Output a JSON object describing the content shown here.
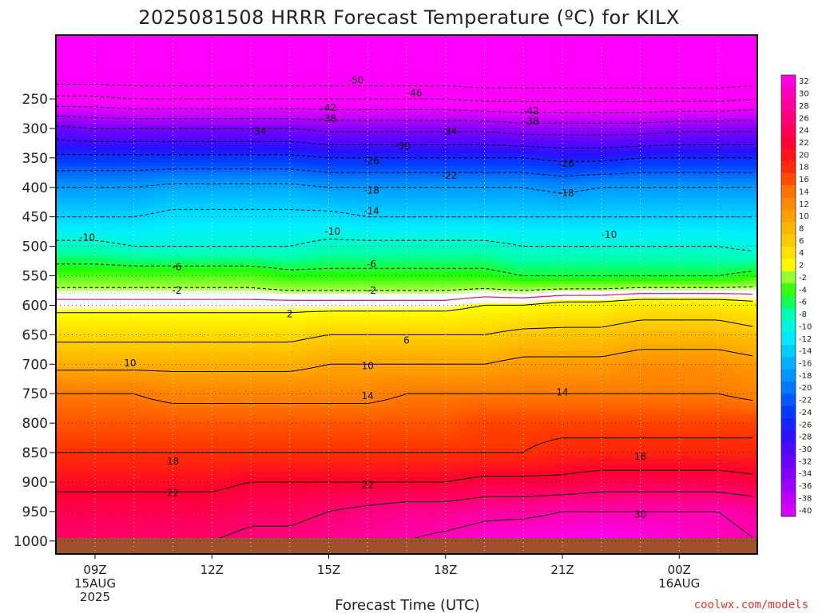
{
  "chart_data": {
    "type": "heatmap",
    "title": "2025081508 HRRR Forecast Temperature (ºC) for KILX",
    "xlabel": "Forecast Time (UTC)",
    "ylabel": "",
    "x_ticks": [
      {
        "label": "09Z",
        "sub": [
          "15AUG",
          "2025"
        ]
      },
      {
        "label": "12Z",
        "sub": []
      },
      {
        "label": "15Z",
        "sub": []
      },
      {
        "label": "18Z",
        "sub": []
      },
      {
        "label": "21Z",
        "sub": []
      },
      {
        "label": "00Z",
        "sub": [
          "16AUG"
        ]
      }
    ],
    "y_ticks": [
      "250",
      "300",
      "350",
      "400",
      "450",
      "500",
      "550",
      "600",
      "650",
      "700",
      "750",
      "800",
      "850",
      "900",
      "950",
      "1000"
    ],
    "x_hours": [
      8,
      9,
      10,
      11,
      12,
      13,
      14,
      15,
      16,
      17,
      18,
      19,
      20,
      21,
      22,
      23,
      24,
      25,
      26
    ],
    "levels_mb": [
      200,
      250,
      300,
      350,
      400,
      450,
      500,
      550,
      600,
      650,
      700,
      750,
      800,
      850,
      900,
      950,
      1000
    ],
    "series": [
      {
        "level": 200,
        "values": [
          -55,
          -55,
          -55,
          -55,
          -55,
          -55,
          -55,
          -55,
          -55,
          -55,
          -55,
          -55,
          -55,
          -55,
          -55,
          -55,
          -55,
          -55,
          -55
        ]
      },
      {
        "level": 250,
        "values": [
          -45,
          -45,
          -46,
          -46,
          -46,
          -46,
          -46,
          -46,
          -46,
          -46,
          -46,
          -47,
          -47,
          -47,
          -47,
          -47,
          -47,
          -47,
          -46
        ]
      },
      {
        "level": 300,
        "values": [
          -33,
          -34,
          -34,
          -34,
          -34,
          -34,
          -34,
          -35,
          -35,
          -35,
          -35,
          -35,
          -36,
          -36,
          -36,
          -36,
          -35,
          -35,
          -35
        ]
      },
      {
        "level": 350,
        "values": [
          -25,
          -25,
          -25,
          -25,
          -25,
          -25,
          -25,
          -26,
          -26,
          -26,
          -26,
          -26,
          -26,
          -27,
          -27,
          -26,
          -26,
          -26,
          -26
        ]
      },
      {
        "level": 400,
        "values": [
          -18,
          -18,
          -18,
          -17,
          -17,
          -17,
          -17,
          -18,
          -18,
          -18,
          -18,
          -18,
          -18,
          -19,
          -18,
          -18,
          -18,
          -18,
          -18
        ]
      },
      {
        "level": 450,
        "values": [
          -14,
          -14,
          -14,
          -13,
          -13,
          -13,
          -13,
          -13,
          -14,
          -14,
          -14,
          -14,
          -14,
          -14,
          -14,
          -14,
          -14,
          -14,
          -14
        ]
      },
      {
        "level": 500,
        "values": [
          -9,
          -9,
          -10,
          -10,
          -10,
          -10,
          -10,
          -9,
          -9,
          -9,
          -9,
          -9,
          -10,
          -10,
          -10,
          -10,
          -10,
          -10,
          -11
        ]
      },
      {
        "level": 550,
        "values": [
          -4,
          -4,
          -4,
          -4,
          -4,
          -4,
          -5,
          -5,
          -5,
          -5,
          -5,
          -5,
          -6,
          -6,
          -6,
          -6,
          -6,
          -6,
          -5
        ]
      },
      {
        "level": 600,
        "values": [
          1,
          1,
          1,
          1,
          1,
          1,
          1,
          1,
          1,
          1,
          1,
          2,
          2,
          3,
          3,
          4,
          4,
          4,
          3
        ]
      },
      {
        "level": 650,
        "values": [
          5,
          5,
          5,
          5,
          5,
          5,
          5,
          6,
          6,
          6,
          6,
          6,
          7,
          7,
          7,
          8,
          8,
          8,
          7
        ]
      },
      {
        "level": 700,
        "values": [
          9,
          9,
          9,
          9,
          9,
          9,
          9,
          10,
          10,
          10,
          10,
          10,
          11,
          11,
          11,
          12,
          12,
          12,
          11
        ]
      },
      {
        "level": 750,
        "values": [
          14,
          14,
          14,
          13,
          13,
          13,
          13,
          13,
          13,
          14,
          14,
          14,
          14,
          14,
          14,
          14,
          14,
          14,
          13
        ]
      },
      {
        "level": 800,
        "values": [
          16,
          16,
          16,
          16,
          16,
          16,
          16,
          16,
          16,
          16,
          16,
          17,
          17,
          17,
          17,
          17,
          17,
          17,
          17
        ]
      },
      {
        "level": 850,
        "values": [
          18,
          18,
          18,
          18,
          18,
          18,
          18,
          18,
          18,
          18,
          18,
          18,
          18,
          19,
          19,
          19,
          19,
          19,
          19
        ]
      },
      {
        "level": 900,
        "values": [
          21,
          21,
          21,
          21,
          21,
          22,
          22,
          22,
          22,
          22,
          22,
          23,
          23,
          23,
          24,
          24,
          24,
          24,
          23
        ]
      },
      {
        "level": 950,
        "values": [
          24,
          24,
          24,
          24,
          24,
          25,
          25,
          26,
          27,
          28,
          28,
          29,
          29,
          30,
          30,
          30,
          30,
          30,
          29
        ]
      },
      {
        "level": 1000,
        "values": [
          26,
          26,
          26,
          26,
          26,
          27,
          27,
          28,
          29,
          30,
          31,
          32,
          33,
          33,
          34,
          33,
          32,
          31,
          30
        ]
      }
    ],
    "contour_labels": [
      {
        "text": "-50",
        "hour": 15.7,
        "p": 218
      },
      {
        "text": "-46",
        "hour": 17.2,
        "p": 240
      },
      {
        "text": "-42",
        "hour": 15.0,
        "p": 265
      },
      {
        "text": "-42",
        "hour": 20.2,
        "p": 270
      },
      {
        "text": "-38",
        "hour": 15.0,
        "p": 283
      },
      {
        "text": "-38",
        "hour": 20.2,
        "p": 288
      },
      {
        "text": "-34",
        "hour": 13.2,
        "p": 305
      },
      {
        "text": "-34",
        "hour": 18.1,
        "p": 305
      },
      {
        "text": "-30",
        "hour": 16.9,
        "p": 330
      },
      {
        "text": "-26",
        "hour": 16.1,
        "p": 355
      },
      {
        "text": "-26",
        "hour": 21.1,
        "p": 360
      },
      {
        "text": "-22",
        "hour": 18.1,
        "p": 380
      },
      {
        "text": "-18",
        "hour": 16.1,
        "p": 405
      },
      {
        "text": "-18",
        "hour": 21.1,
        "p": 410
      },
      {
        "text": "-14",
        "hour": 16.1,
        "p": 440
      },
      {
        "text": "-10",
        "hour": 8.8,
        "p": 485
      },
      {
        "text": "-10",
        "hour": 15.1,
        "p": 475
      },
      {
        "text": "-10",
        "hour": 22.2,
        "p": 480
      },
      {
        "text": "-6",
        "hour": 11.1,
        "p": 535
      },
      {
        "text": "-6",
        "hour": 16.1,
        "p": 530
      },
      {
        "text": "-2",
        "hour": 11.1,
        "p": 575
      },
      {
        "text": "-2",
        "hour": 16.1,
        "p": 575
      },
      {
        "text": "2",
        "hour": 14.0,
        "p": 615
      },
      {
        "text": "6",
        "hour": 17.0,
        "p": 660
      },
      {
        "text": "10",
        "hour": 9.9,
        "p": 698
      },
      {
        "text": "10",
        "hour": 16.0,
        "p": 703
      },
      {
        "text": "14",
        "hour": 16.0,
        "p": 754
      },
      {
        "text": "14",
        "hour": 21.0,
        "p": 748
      },
      {
        "text": "18",
        "hour": 11.0,
        "p": 865
      },
      {
        "text": "18",
        "hour": 23.0,
        "p": 857
      },
      {
        "text": "22",
        "hour": 11.0,
        "p": 918
      },
      {
        "text": "22",
        "hour": 16.0,
        "p": 905
      },
      {
        "text": "30",
        "hour": 23.0,
        "p": 955
      }
    ],
    "colorbar": {
      "levels": [
        32,
        30,
        28,
        26,
        24,
        22,
        20,
        18,
        16,
        14,
        12,
        10,
        8,
        6,
        4,
        2,
        -2,
        -4,
        -6,
        -8,
        -10,
        -12,
        -14,
        -16,
        -18,
        -20,
        -22,
        -24,
        -26,
        -28,
        -30,
        -32,
        -34,
        -36,
        -38,
        -40
      ],
      "labels": [
        "32",
        "30",
        "28",
        "26",
        "24",
        "22",
        "20",
        "18",
        "16",
        "14",
        "12",
        "10",
        "8",
        "6",
        "4",
        "2",
        "-2",
        "-4",
        "-6",
        "-8",
        "-10",
        "-12",
        "-14",
        "-16",
        "-18",
        "-20",
        "-22",
        "-24",
        "-26",
        "-28",
        "-30",
        "-32",
        "-34",
        "-36",
        "-38",
        "-40"
      ]
    },
    "grid": true,
    "credit": "coolwx.com/models",
    "colors": {
      "ground": "#a0522d",
      "freezing_line": "#e0218a",
      "title_text": "#222222",
      "credit_text": "#e0352a"
    }
  }
}
